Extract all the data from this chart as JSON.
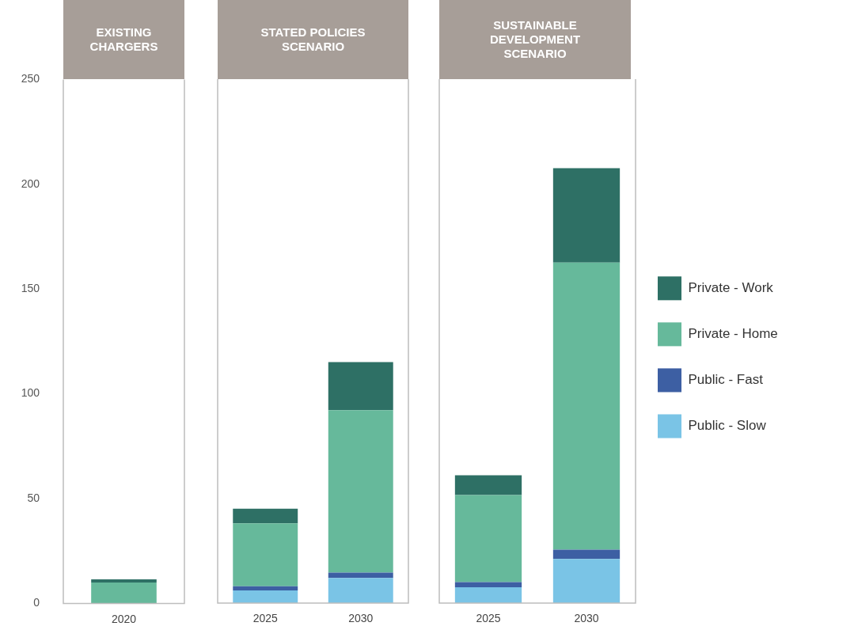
{
  "chart_data": [
    {
      "type": "bar",
      "title": "EXISTING CHARGERS",
      "categories": [
        "2020"
      ],
      "stacked": true,
      "ylim": [
        0,
        250
      ],
      "yticks": [
        0,
        50,
        100,
        150,
        200,
        250
      ],
      "grid": false,
      "legend": false,
      "series": [
        {
          "color": "#7ac4e6",
          "values": [
            0
          ]
        },
        {
          "color": "#3d5fa3",
          "values": [
            0
          ]
        },
        {
          "color": "#66b99b",
          "values": [
            10
          ]
        },
        {
          "color": "#2e7065",
          "values": [
            1.5
          ]
        }
      ]
    },
    {
      "type": "bar",
      "title": "STATED POLICIES SCENARIO",
      "categories": [
        "2025",
        "2030"
      ],
      "stacked": true,
      "ylim": [
        0,
        250
      ],
      "grid": false,
      "legend": false,
      "tick_labels": "x",
      "series": [
        {
          "color": "#7ac4e6",
          "values": [
            6,
            12
          ]
        },
        {
          "color": "#3d5fa3",
          "values": [
            2,
            2.5
          ]
        },
        {
          "color": "#66b99b",
          "values": [
            30,
            77.5
          ]
        },
        {
          "color": "#2e7065",
          "values": [
            7,
            23
          ]
        }
      ]
    },
    {
      "type": "bar",
      "title": "SUSTAINABLE DEVELOPMENT SCENARIO",
      "categories": [
        "2025",
        "2030"
      ],
      "stacked": true,
      "ylim": [
        0,
        250
      ],
      "grid": false,
      "legend": "right",
      "tick_labels": "x",
      "series": [
        {
          "name": "Public - Slow",
          "color": "#7ac4e6",
          "values": [
            7.5,
            21
          ]
        },
        {
          "name": "Public - Fast",
          "color": "#3d5fa3",
          "values": [
            2.5,
            4.5
          ]
        },
        {
          "name": "Private - Home",
          "color": "#66b99b",
          "values": [
            41.5,
            137
          ]
        },
        {
          "name": "Private - Work",
          "color": "#2e7065",
          "values": [
            9.5,
            45
          ]
        }
      ]
    }
  ]
}
